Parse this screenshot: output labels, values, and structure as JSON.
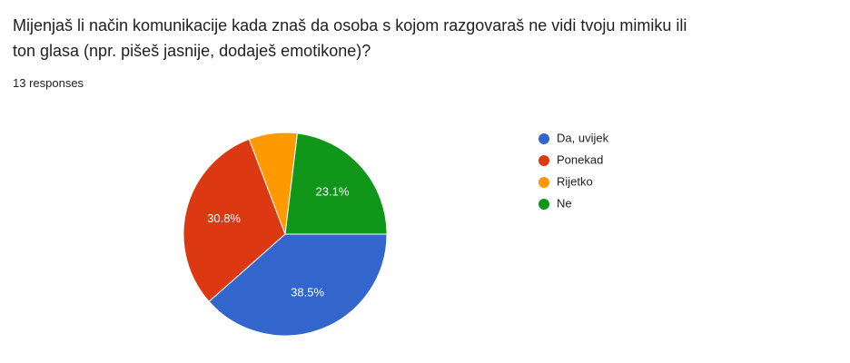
{
  "chart_data": {
    "type": "pie",
    "title": "Mijenjaš li način komunikacije kada znaš da osoba s kojom razgovaraš ne vidi tvoju mimiku ili ton glasa (npr. pišeš jasnije, dodaješ emotikone)?",
    "subtitle": "13 responses",
    "categories": [
      "Da, uvijek",
      "Ponekad",
      "Rijetko",
      "Ne"
    ],
    "values": [
      38.5,
      30.8,
      7.7,
      23.1
    ],
    "value_labels": [
      "38.5%",
      "30.8%",
      null,
      "23.1%"
    ],
    "colors": [
      "#3366cc",
      "#dc3912",
      "#ff9900",
      "#109618"
    ],
    "legend": "right"
  }
}
